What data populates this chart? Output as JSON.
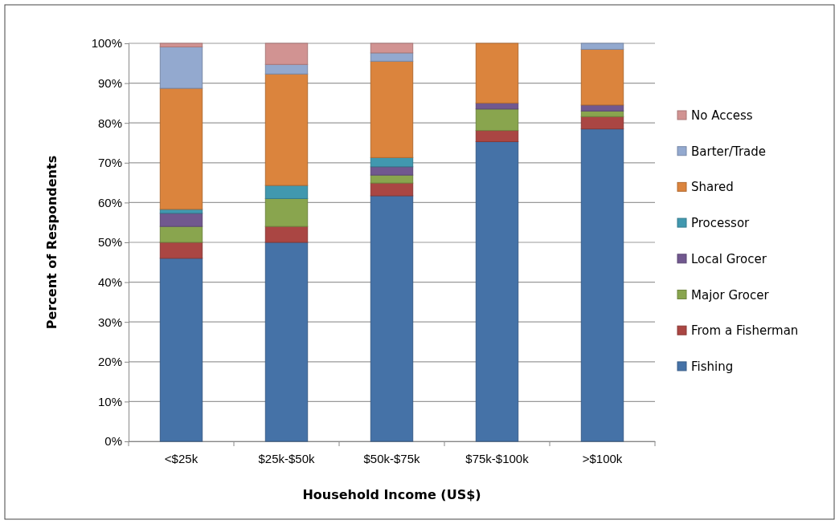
{
  "chart_data": {
    "type": "bar",
    "stacked": true,
    "xlabel": "Household Income (US$)",
    "ylabel": "Percent of Respondents",
    "categories": [
      "<$25k",
      "$25k-$50k",
      "$50k-$75k",
      "$75k-$100k",
      ">$100k"
    ],
    "ylim": [
      0,
      100
    ],
    "yticks": [
      {
        "value": 0,
        "label": "0%"
      },
      {
        "value": 10,
        "label": "10%"
      },
      {
        "value": 20,
        "label": "20%"
      },
      {
        "value": 30,
        "label": "30%"
      },
      {
        "value": 40,
        "label": "40%"
      },
      {
        "value": 50,
        "label": "50%"
      },
      {
        "value": 60,
        "label": "60%"
      },
      {
        "value": 70,
        "label": "70%"
      },
      {
        "value": 80,
        "label": "80%"
      },
      {
        "value": 90,
        "label": "90%"
      },
      {
        "value": 100,
        "label": "100%"
      }
    ],
    "grid": "y",
    "legend": "right",
    "series": [
      {
        "name": "Fishing",
        "color": "#4572a7",
        "values": [
          46,
          50,
          61.7,
          75.3,
          78.5
        ]
      },
      {
        "name": "From a Fisherman",
        "color": "#aa4643",
        "values": [
          4,
          4,
          3.2,
          2.8,
          3.1
        ]
      },
      {
        "name": "Major Grocer",
        "color": "#89a54e",
        "values": [
          4,
          7,
          2,
          5.4,
          1.4
        ]
      },
      {
        "name": "Local Grocer",
        "color": "#71588f",
        "values": [
          3.3,
          0,
          2.1,
          1.5,
          1.5
        ]
      },
      {
        "name": "Processor",
        "color": "#4198af",
        "values": [
          1,
          3.3,
          2.3,
          0,
          0
        ]
      },
      {
        "name": "Shared",
        "color": "#db843d",
        "values": [
          30.4,
          28,
          24.2,
          15,
          14
        ]
      },
      {
        "name": "Barter/Trade",
        "color": "#93a9cf",
        "values": [
          10.4,
          2.4,
          2.1,
          0,
          1.5
        ]
      },
      {
        "name": "No Access",
        "color": "#d19392",
        "values": [
          0.9,
          5.3,
          2.4,
          0,
          0
        ]
      }
    ]
  }
}
